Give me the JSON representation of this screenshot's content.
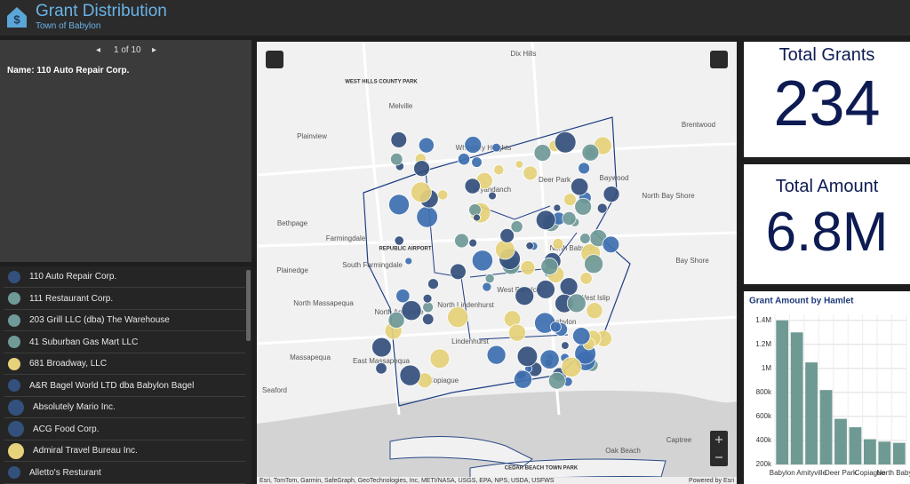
{
  "header": {
    "title": "Grant Distribution",
    "subtitle": "Town of Babylon"
  },
  "details": {
    "pager": "1 of 10",
    "name": "Name: 110 Auto Repair Corp."
  },
  "list": {
    "items": [
      {
        "name": "110 Auto Repair Corp.",
        "color": "#34507d"
      },
      {
        "name": "111 Restaurant Corp.",
        "color": "#6f9a97"
      },
      {
        "name": "203 Grill LLC (dba) The Warehouse",
        "color": "#6f9a97"
      },
      {
        "name": "41 Suburban Gas Mart LLC",
        "color": "#6f9a97"
      },
      {
        "name": "681 Broadway, LLC",
        "color": "#e6d27a"
      },
      {
        "name": "A&R Bagel World LTD dba Babylon Bagel",
        "color": "#34507d"
      },
      {
        "name": "Absolutely Mario Inc.",
        "color": "#34507d"
      },
      {
        "name": "ACG Food Corp.",
        "color": "#34507d"
      },
      {
        "name": "Admiral Travel Bureau Inc.",
        "color": "#e6d27a"
      },
      {
        "name": "Alletto's Resturant",
        "color": "#34507d"
      }
    ]
  },
  "map": {
    "labels": [
      "WEST HILLS COUNTY PARK",
      "Dix Hills",
      "Melville",
      "Plainview",
      "Brentwood",
      "Wheatley Heights",
      "Wyandanch",
      "Deer Park",
      "Baywood",
      "North Bay Shore",
      "Bethpage",
      "Farmingdale",
      "REPUBLIC AIRPORT",
      "South Farmingdale",
      "North Babylon",
      "Bay Shore",
      "Plainedge",
      "North Massapequa",
      "West Babylon",
      "West Islip",
      "North Amityville",
      "North Lindenhurst",
      "Babylon",
      "Massapequa",
      "Lindenhurst",
      "East Massapequa",
      "Copiague",
      "Seaford",
      "Oak Beach",
      "Captree",
      "CEDAR BEACH TOWN PARK"
    ],
    "attribution": "Esri, TomTom, Garmin, SafeGraph, GeoTechnologies, Inc, METI/NASA, USGS, EPA, NPS, USDA, USFWS",
    "powered": "Powered by Esri"
  },
  "kpis": [
    {
      "title": "Total Grants",
      "value": "234"
    },
    {
      "title": "Total Amount",
      "value": "6.8M"
    }
  ],
  "chart_data": {
    "type": "bar",
    "title": "Grant Amount by Hamlet",
    "categories": [
      "Babylon",
      null,
      "Amityville",
      null,
      "Deer Park",
      null,
      "Copiague",
      null,
      "North Babylon"
    ],
    "values": [
      1400000,
      1300000,
      1050000,
      820000,
      580000,
      510000,
      410000,
      390000,
      380000
    ],
    "color": "#6f9a93",
    "ylim": [
      200000,
      1450000
    ],
    "yticks": [
      {
        "value": 200000,
        "label": "200k"
      },
      {
        "value": 400000,
        "label": "400k"
      },
      {
        "value": 600000,
        "label": "600k"
      },
      {
        "value": 800000,
        "label": "800k"
      },
      {
        "value": 1000000,
        "label": "1M"
      },
      {
        "value": 1200000,
        "label": "1.2M"
      },
      {
        "value": 1400000,
        "label": "1.4M"
      }
    ],
    "grid": true
  }
}
